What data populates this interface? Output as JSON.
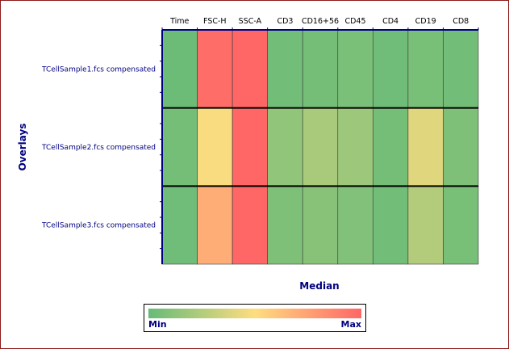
{
  "chart_data": {
    "type": "heatmap",
    "title": "",
    "xlabel": "Median",
    "ylabel": "Overlays",
    "columns": [
      "Time",
      "FSC-H",
      "SSC-A",
      "CD3",
      "CD16+56",
      "CD45",
      "CD4",
      "CD19",
      "CD8"
    ],
    "rows": [
      "TCellSample1.fcs compensated",
      "TCellSample2.fcs compensated",
      "TCellSample3.fcs compensated"
    ],
    "values": [
      [
        0.02,
        0.97,
        1.0,
        0.04,
        0.05,
        0.07,
        0.03,
        0.06,
        0.04
      ],
      [
        0.05,
        0.48,
        1.0,
        0.14,
        0.22,
        0.18,
        0.05,
        0.4,
        0.08
      ],
      [
        0.03,
        0.7,
        1.0,
        0.08,
        0.11,
        0.09,
        0.04,
        0.25,
        0.06
      ]
    ],
    "scale_min": 0,
    "scale_max": 1,
    "colors": {
      "low": "#66bb77",
      "mid": "#ffdd80",
      "high": "#ff6666"
    },
    "legend": {
      "min_label": "Min",
      "max_label": "Max",
      "placement": "bottom"
    }
  }
}
